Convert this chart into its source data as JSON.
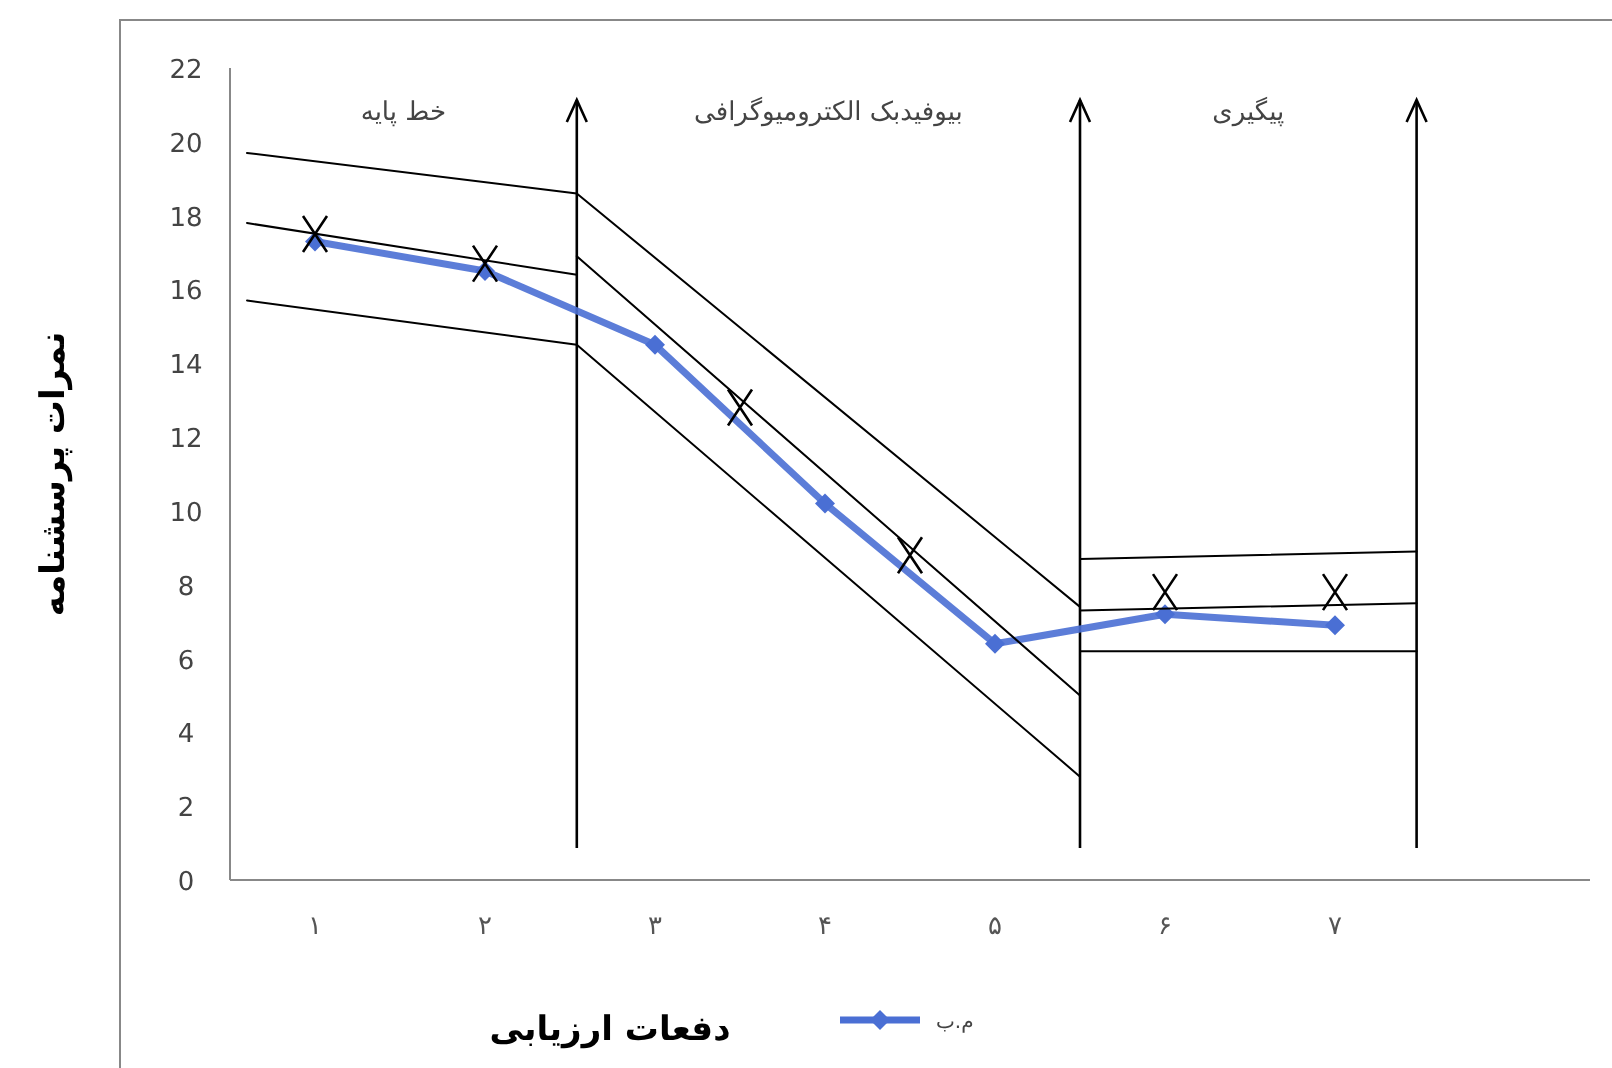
{
  "chart_data": {
    "type": "line",
    "xlabel": "دفعات ارزیابی",
    "ylabel": "نمرات پرسشنامه",
    "legend": "bottom",
    "marker": "diamond",
    "xlim": [
      0.5,
      8.5
    ],
    "xticks": [
      {
        "value": 1,
        "label": "۱"
      },
      {
        "value": 2,
        "label": "۲"
      },
      {
        "value": 3,
        "label": "۳"
      },
      {
        "value": 4,
        "label": "۴"
      },
      {
        "value": 5,
        "label": "۵"
      },
      {
        "value": 6,
        "label": "۶"
      },
      {
        "value": 7,
        "label": "۷"
      }
    ],
    "ylim": [
      0,
      22
    ],
    "yticks": [
      0,
      2,
      4,
      6,
      8,
      10,
      12,
      14,
      16,
      18,
      20,
      22
    ],
    "series": [
      {
        "name": "م.ب",
        "color": "#4a6fd4",
        "x": [
          1,
          2,
          3,
          4,
          5,
          6,
          7
        ],
        "values": [
          17.3,
          16.5,
          14.5,
          10.2,
          6.4,
          7.2,
          6.9
        ]
      },
      {
        "type": "scatter",
        "marker": "cross",
        "color": "#000000",
        "x": [
          1,
          2,
          3.5,
          4.5,
          6,
          7
        ],
        "values": [
          17.5,
          16.7,
          12.8,
          8.8,
          7.8,
          7.8
        ]
      },
      {
        "marker": "none",
        "color": "#000000",
        "x": [
          0.6,
          2.54
        ],
        "values": [
          19.7,
          18.6
        ]
      },
      {
        "marker": "none",
        "color": "#000000",
        "x": [
          0.6,
          2.54
        ],
        "values": [
          17.8,
          16.4
        ]
      },
      {
        "marker": "none",
        "color": "#000000",
        "x": [
          0.6,
          2.54
        ],
        "values": [
          15.7,
          14.5
        ]
      },
      {
        "marker": "none",
        "color": "#000000",
        "x": [
          2.54,
          5.5
        ],
        "values": [
          18.6,
          7.4
        ]
      },
      {
        "marker": "none",
        "color": "#000000",
        "x": [
          2.54,
          5.5
        ],
        "values": [
          16.9,
          5.0
        ]
      },
      {
        "marker": "none",
        "color": "#000000",
        "x": [
          2.54,
          5.5
        ],
        "values": [
          14.5,
          2.8
        ]
      },
      {
        "marker": "none",
        "color": "#000000",
        "x": [
          5.5,
          7.48
        ],
        "values": [
          8.7,
          8.9
        ]
      },
      {
        "marker": "none",
        "color": "#000000",
        "x": [
          5.5,
          7.48
        ],
        "values": [
          7.3,
          7.5
        ]
      },
      {
        "marker": "none",
        "color": "#000000",
        "x": [
          5.5,
          7.48
        ],
        "values": [
          6.2,
          6.2
        ]
      }
    ],
    "ref_lines": [
      {
        "axis": "x",
        "value": 2.54
      },
      {
        "axis": "x",
        "value": 5.5
      },
      {
        "axis": "x",
        "value": 7.48
      }
    ],
    "annotations": [
      "خط پایه",
      "بیوفیدبک الکترومیوگرافی",
      "پیگیری"
    ]
  }
}
